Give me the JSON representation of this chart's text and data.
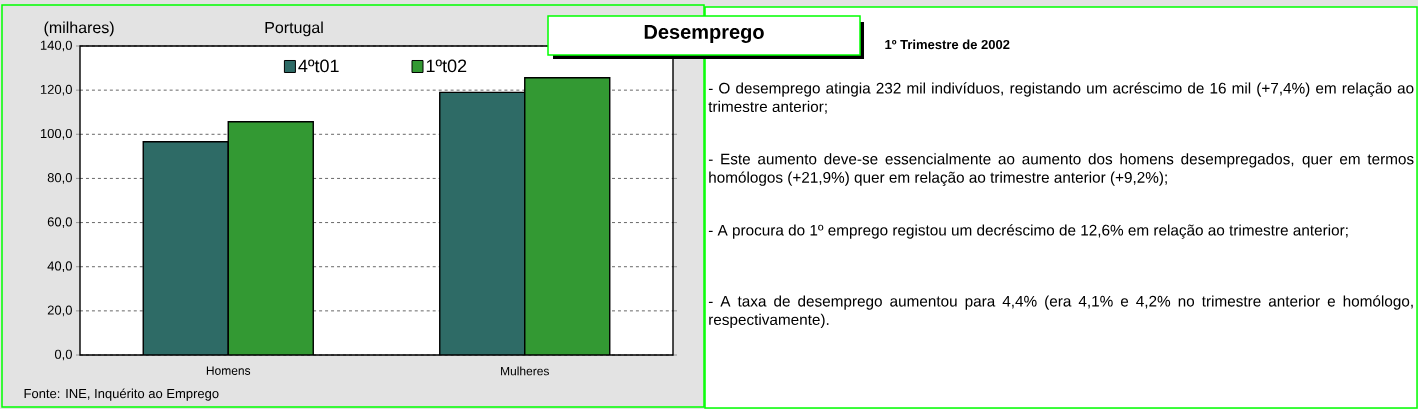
{
  "chart_data": [
    {
      "type": "bar",
      "title": "Portugal",
      "ylabel": "(milhares)",
      "categories": [
        "Homens",
        "Mulheres"
      ],
      "series": [
        {
          "name": "4ºt01",
          "color": "#2e6b66",
          "values": [
            96.6,
            119.0
          ]
        },
        {
          "name": "1ºt02",
          "color": "#339933",
          "values": [
            105.7,
            125.6
          ]
        }
      ],
      "ylim": [
        0,
        140
      ],
      "yticks": [
        {
          "value": 0,
          "label": "0,0"
        },
        {
          "value": 20,
          "label": "20,0"
        },
        {
          "value": 40,
          "label": "40,0"
        },
        {
          "value": 60,
          "label": "60,0"
        },
        {
          "value": 80,
          "label": "80,0"
        },
        {
          "value": 100,
          "label": "100,0"
        },
        {
          "value": 120,
          "label": "120,0"
        },
        {
          "value": 140,
          "label": "140,0"
        }
      ],
      "grid": "y",
      "legend": "top",
      "annotations": [
        "Fonte: INE, Inquérito ao Emprego"
      ]
    },
    {
      "type": "other",
      "title": "Desemprego",
      "subtitle": "1º Trimestre de 2002",
      "annotations": [
        "- O desemprego atingia 232 mil indivíduos, registando um acréscimo de 16 mil (+7,4%)  em relação  ao  trimestre anterior;",
        "- Este aumento deve-se essencialmente ao aumento dos  homens desempregados, quer em termos homólogos (+21,9%) quer em relação ao trimestre anterior (+9,2%);",
        "- A procura do 1º emprego registou um decréscimo de 12,6% em relação ao trimestre anterior;",
        "-  A taxa de desemprego aumentou para 4,4% (era 4,1% e 4,2%  no trimestre anterior e homólogo, respectivamente)."
      ]
    }
  ]
}
